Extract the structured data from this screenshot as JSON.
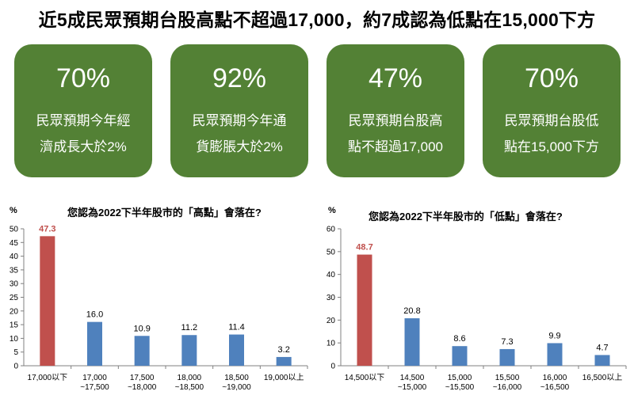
{
  "headline": "近5成民眾預期台股高點不超過17,000，約7成認為低點在15,000下方",
  "cards": [
    {
      "value": "70%",
      "line1": "民眾預期今年經",
      "line2": "濟成長大於2%"
    },
    {
      "value": "92%",
      "line1": "民眾預期今年通",
      "line2": "貨膨脹大於2%"
    },
    {
      "value": "47%",
      "line1": "民眾預期台股高",
      "line2": "點不超過17,000"
    },
    {
      "value": "70%",
      "line1": "民眾預期台股低",
      "line2": "點在15,000下方"
    }
  ],
  "colors": {
    "card_bg": "#538135",
    "highlight_bar": "#C0504D",
    "bar": "#4F81BD"
  },
  "chart_data": [
    {
      "type": "bar",
      "title": "您認為2022下半年股市的「高點」會落在?",
      "ylabel": "%",
      "ylim": [
        0,
        50
      ],
      "yticks": [
        0,
        5,
        10,
        15,
        20,
        25,
        30,
        35,
        40,
        45,
        50
      ],
      "categories": [
        [
          "17,000以下"
        ],
        [
          "17,000",
          "~17,500"
        ],
        [
          "17,500",
          "~18,000"
        ],
        [
          "18,000",
          "~18,500"
        ],
        [
          "18,500",
          "~19,000"
        ],
        [
          "19,000以上"
        ]
      ],
      "values": [
        47.3,
        16.0,
        10.9,
        11.2,
        11.4,
        3.2
      ],
      "value_labels": [
        "47.3",
        "16.0",
        "10.9",
        "11.2",
        "11.4",
        "3.2"
      ],
      "highlight_index": 0
    },
    {
      "type": "bar",
      "title": "您認為2022下半年股市的「低點」會落在?",
      "ylabel": "%",
      "ylim": [
        0,
        60
      ],
      "yticks": [
        0,
        10,
        20,
        30,
        40,
        50,
        60
      ],
      "categories": [
        [
          "14,500以下"
        ],
        [
          "14,500",
          "~15,000"
        ],
        [
          "15,000",
          "~15,500"
        ],
        [
          "15,500",
          "~16,000"
        ],
        [
          "16,000",
          "~16,500"
        ],
        [
          "16,500以上"
        ]
      ],
      "values": [
        48.7,
        20.8,
        8.6,
        7.3,
        9.9,
        4.7
      ],
      "value_labels": [
        "48.7",
        "20.8",
        "8.6",
        "7.3",
        "9.9",
        "4.7"
      ],
      "highlight_index": 0
    }
  ]
}
